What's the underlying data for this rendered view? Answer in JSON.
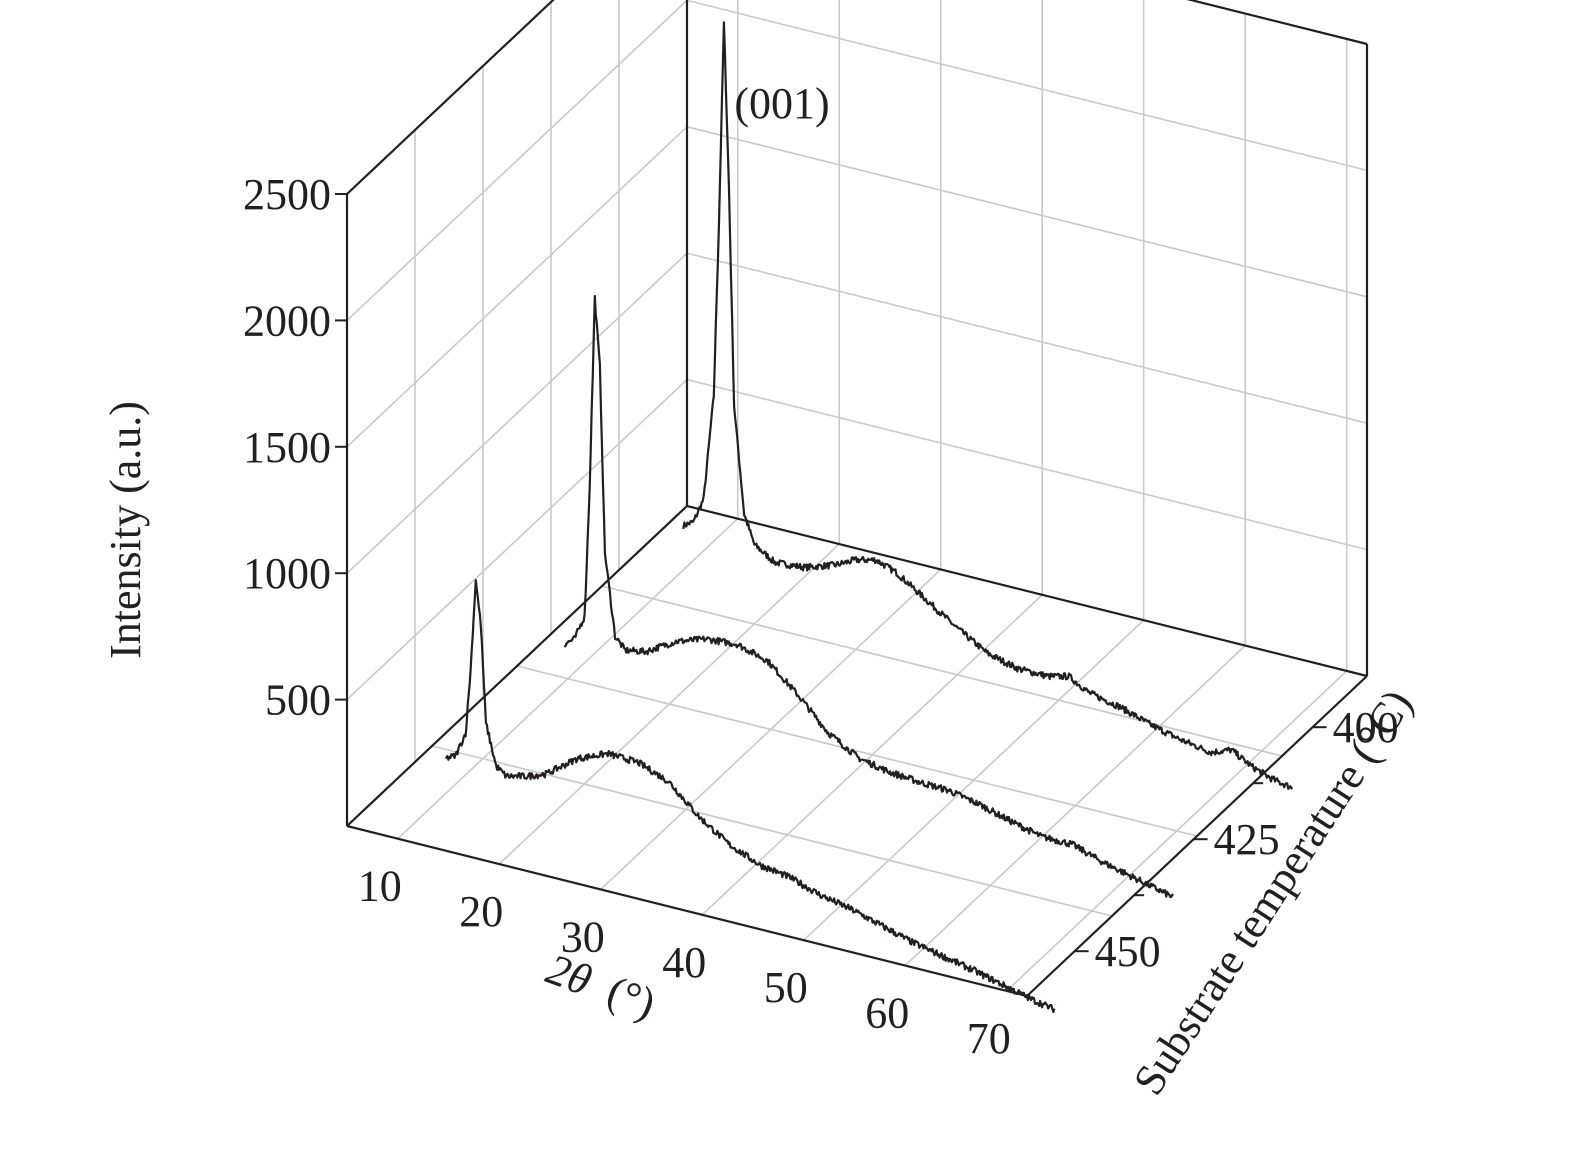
{
  "chart_data": {
    "type": "line",
    "view": "3d-waterfall",
    "xlabel_prefix": "2θ",
    "xlabel_unit": "(°)",
    "ylabel": "Substrate temperature (°C)",
    "zlabel": "Intensity (a.u.)",
    "x_ticks": [
      "10",
      "20",
      "30",
      "40",
      "50",
      "60",
      "70"
    ],
    "y_ticks": [
      "400",
      "425",
      "450"
    ],
    "z_ticks": [
      "500",
      "1000",
      "1500",
      "2000",
      "2500"
    ],
    "xlim": [
      10,
      70
    ],
    "zlim": [
      0,
      2500
    ],
    "grid": true,
    "annotation": {
      "text": "(001)",
      "x": 14,
      "series": "400"
    },
    "series": [
      {
        "name": "400",
        "x": [
          10,
          11,
          12,
          13,
          13.5,
          14,
          14.5,
          15,
          16,
          17,
          19,
          22,
          25,
          27,
          29,
          31,
          34,
          37,
          40,
          43,
          46,
          48,
          50,
          53,
          56,
          59,
          62,
          64,
          66,
          68,
          70
        ],
        "y": [
          175,
          200,
          300,
          720,
          1400,
          2200,
          1550,
          700,
          280,
          170,
          120,
          130,
          170,
          210,
          230,
          200,
          120,
          40,
          -30,
          -60,
          -60,
          -40,
          -85,
          -110,
          -150,
          -180,
          -200,
          -170,
          -215,
          -245,
          -260
        ]
      },
      {
        "name": "425",
        "x": [
          10,
          11,
          12,
          12.5,
          13,
          13.5,
          14,
          15,
          16,
          18,
          21,
          24,
          27,
          30,
          33,
          36,
          39,
          42,
          45,
          48,
          51,
          54,
          57,
          60,
          63,
          66,
          68,
          70
        ],
        "y": [
          150,
          180,
          280,
          800,
          1550,
          1280,
          550,
          230,
          185,
          200,
          270,
          310,
          320,
          285,
          180,
          60,
          -10,
          -35,
          -45,
          -50,
          -75,
          -110,
          -140,
          -140,
          -180,
          -210,
          -230,
          -250
        ]
      },
      {
        "name": "450",
        "x": [
          10,
          11,
          12,
          12.5,
          13,
          13.5,
          14,
          15,
          16,
          18,
          20,
          23,
          26,
          29,
          32,
          35,
          38,
          41,
          44,
          47,
          50,
          53,
          56,
          59,
          62,
          65,
          68,
          70
        ],
        "y": [
          140,
          160,
          260,
          520,
          880,
          700,
          320,
          160,
          130,
          150,
          180,
          270,
          320,
          315,
          270,
          160,
          80,
          30,
          10,
          -30,
          -55,
          -90,
          -125,
          -150,
          -175,
          -205,
          -235,
          -250
        ]
      }
    ]
  }
}
